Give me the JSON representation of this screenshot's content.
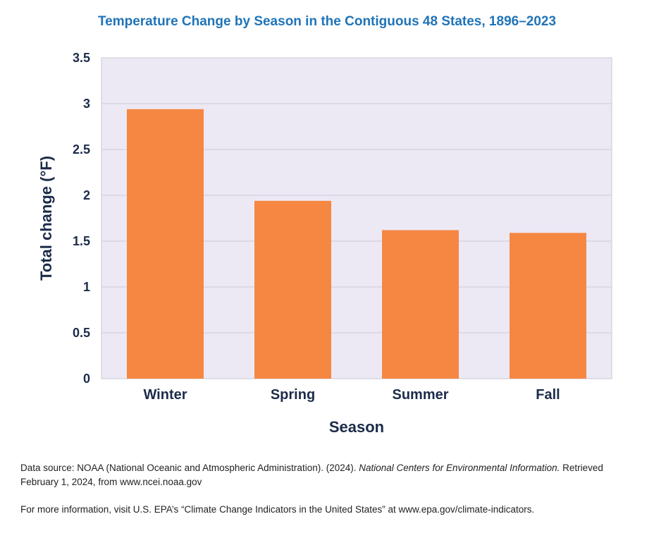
{
  "chart_data": {
    "type": "bar",
    "title": "Temperature Change by Season in the Contiguous 48 States, 1896–2023",
    "xlabel": "Season",
    "ylabel": "Total change (°F)",
    "categories": [
      "Winter",
      "Spring",
      "Summer",
      "Fall"
    ],
    "values": [
      2.94,
      1.94,
      1.62,
      1.59
    ],
    "ylim": [
      0,
      3.5
    ],
    "yticks": [
      "0",
      "0.5",
      "1",
      "1.5",
      "2",
      "2.5",
      "3",
      "3.5"
    ],
    "yticks_values": [
      0,
      0.5,
      1,
      1.5,
      2,
      2.5,
      3,
      3.5
    ],
    "grid": true,
    "legend": "none",
    "colors": {
      "bar": "#f58742",
      "plot_background": "#ece9f4",
      "gridline": "#d8d5e0",
      "title": "#1f74b8",
      "text": "#1c2b4a"
    }
  },
  "footer": {
    "source_prefix": "Data source: NOAA (National Oceanic and Atmospheric Administration). (2024). ",
    "source_title": "National Centers for Environmental Information.",
    "source_retrieved": " Retrieved February 1, 2024, from www.ncei.noaa.gov",
    "more_info": "For more information, visit U.S. EPA’s “Climate Change Indicators in the United States” at www.epa.gov/climate-indicators."
  }
}
